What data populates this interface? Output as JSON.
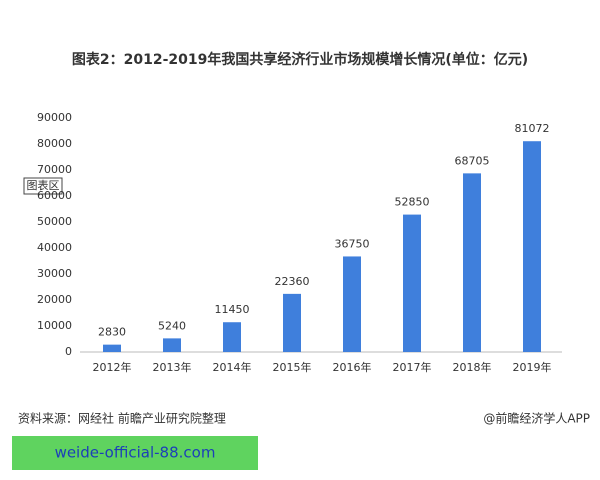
{
  "chart_data": {
    "type": "bar",
    "title": "图表2：2012-2019年我国共享经济行业市场规模增长情况(单位：亿元)",
    "categories": [
      "2012年",
      "2013年",
      "2014年",
      "2015年",
      "2016年",
      "2017年",
      "2018年",
      "2019年"
    ],
    "values": [
      2830,
      5240,
      11450,
      22360,
      36750,
      52850,
      68705,
      81072
    ],
    "color": "#3f7fdc",
    "ylim": [
      0,
      90000
    ],
    "yticks": [
      0,
      10000,
      20000,
      30000,
      40000,
      50000,
      60000,
      70000,
      80000,
      90000
    ],
    "grid": false
  },
  "tooltip": "图表区",
  "source": "资料来源：网经社 前瞻产业研究院整理",
  "credit": "@前瞻经济学人APP",
  "banner": "weide-official-88.com"
}
